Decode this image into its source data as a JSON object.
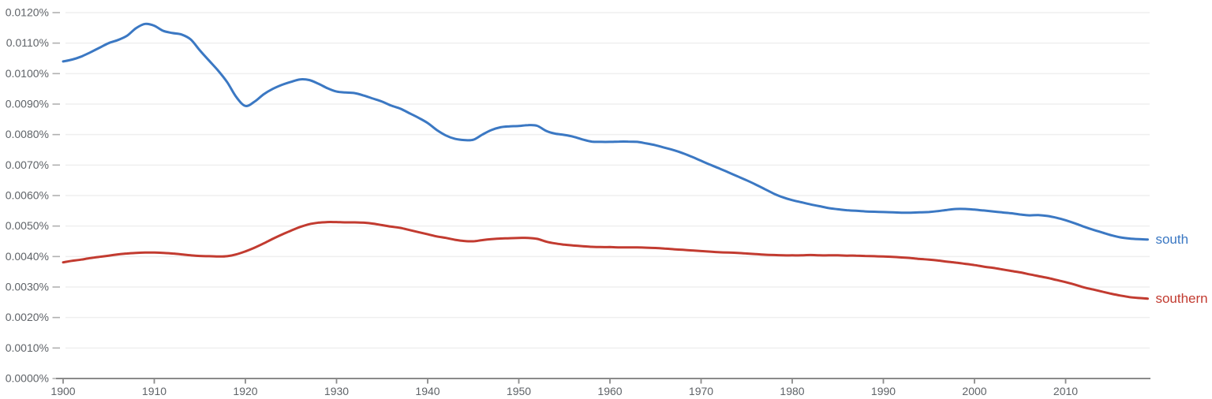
{
  "chart_data": {
    "type": "line",
    "title": "",
    "xlabel": "",
    "ylabel": "",
    "xlim": [
      1900,
      2019
    ],
    "ylim_percent": [
      0.0,
      0.012
    ],
    "grid": true,
    "legend_position": "end-of-line",
    "x_start": 1900,
    "x_step": 1,
    "x_end": 2019,
    "x_tick_labels": [
      "1900",
      "1910",
      "1920",
      "1930",
      "1940",
      "1950",
      "1960",
      "1970",
      "1980",
      "1990",
      "2000",
      "2010"
    ],
    "y_tick_labels": [
      "0.0000%",
      "0.0010%",
      "0.0020%",
      "0.0030%",
      "0.0040%",
      "0.0050%",
      "0.0060%",
      "0.0070%",
      "0.0080%",
      "0.0090%",
      "0.0100%",
      "0.0110%",
      "0.0120%"
    ],
    "series": [
      {
        "name": "south",
        "color": "#3b78c3",
        "values_percent": [
          0.0104,
          0.01046,
          0.01056,
          0.0107,
          0.01085,
          0.011,
          0.0111,
          0.01124,
          0.01149,
          0.01163,
          0.01157,
          0.0114,
          0.01133,
          0.01128,
          0.01112,
          0.01076,
          0.01043,
          0.0101,
          0.00972,
          0.00923,
          0.00894,
          0.00908,
          0.00932,
          0.0095,
          0.00963,
          0.00973,
          0.00981,
          0.00979,
          0.00967,
          0.00952,
          0.00941,
          0.00938,
          0.00936,
          0.00928,
          0.00918,
          0.00908,
          0.00895,
          0.00885,
          0.0087,
          0.00855,
          0.00838,
          0.00815,
          0.00797,
          0.00786,
          0.00782,
          0.00783,
          0.008,
          0.00815,
          0.00824,
          0.00827,
          0.00828,
          0.00831,
          0.00829,
          0.00812,
          0.00803,
          0.00799,
          0.00793,
          0.00784,
          0.00777,
          0.00776,
          0.00776,
          0.00777,
          0.00777,
          0.00776,
          0.00771,
          0.00765,
          0.00757,
          0.00749,
          0.00739,
          0.00727,
          0.00714,
          0.00701,
          0.00689,
          0.00676,
          0.00663,
          0.0065,
          0.00636,
          0.00621,
          0.00606,
          0.00594,
          0.00585,
          0.00578,
          0.00571,
          0.00565,
          0.00559,
          0.00555,
          0.00552,
          0.0055,
          0.00548,
          0.00547,
          0.00546,
          0.00545,
          0.00544,
          0.00544,
          0.00545,
          0.00546,
          0.00549,
          0.00553,
          0.00556,
          0.00556,
          0.00554,
          0.00551,
          0.00548,
          0.00545,
          0.00542,
          0.00538,
          0.00535,
          0.00536,
          0.00533,
          0.00527,
          0.00519,
          0.00509,
          0.00498,
          0.00488,
          0.00479,
          0.0047,
          0.00463,
          0.00459,
          0.00457,
          0.00456
        ]
      },
      {
        "name": "southern",
        "color": "#c23b30",
        "values_percent": [
          0.00381,
          0.00386,
          0.0039,
          0.00395,
          0.00399,
          0.00403,
          0.00407,
          0.0041,
          0.00412,
          0.00413,
          0.00413,
          0.00412,
          0.0041,
          0.00407,
          0.00404,
          0.00402,
          0.00401,
          0.004,
          0.00401,
          0.00407,
          0.00417,
          0.00429,
          0.00443,
          0.00458,
          0.00472,
          0.00485,
          0.00497,
          0.00506,
          0.00511,
          0.00513,
          0.00513,
          0.00512,
          0.00512,
          0.00511,
          0.00508,
          0.00503,
          0.00498,
          0.00494,
          0.00487,
          0.0048,
          0.00473,
          0.00466,
          0.00461,
          0.00455,
          0.00451,
          0.0045,
          0.00454,
          0.00457,
          0.00459,
          0.0046,
          0.00461,
          0.00461,
          0.00458,
          0.00449,
          0.00443,
          0.00439,
          0.00436,
          0.00434,
          0.00432,
          0.00431,
          0.00431,
          0.0043,
          0.0043,
          0.0043,
          0.00429,
          0.00428,
          0.00426,
          0.00424,
          0.00422,
          0.0042,
          0.00418,
          0.00416,
          0.00414,
          0.00413,
          0.00412,
          0.0041,
          0.00408,
          0.00406,
          0.00405,
          0.00404,
          0.00404,
          0.00404,
          0.00405,
          0.00404,
          0.00404,
          0.00404,
          0.00403,
          0.00403,
          0.00402,
          0.00401,
          0.004,
          0.00399,
          0.00397,
          0.00395,
          0.00392,
          0.0039,
          0.00387,
          0.00383,
          0.0038,
          0.00376,
          0.00372,
          0.00367,
          0.00363,
          0.00358,
          0.00353,
          0.00348,
          0.00342,
          0.00336,
          0.0033,
          0.00323,
          0.00316,
          0.00308,
          0.00299,
          0.00292,
          0.00285,
          0.00278,
          0.00272,
          0.00267,
          0.00264,
          0.00262
        ]
      }
    ]
  },
  "colors": {
    "background": "#ffffff",
    "grid": "#efefef",
    "axis": "#8a8a8a",
    "y_tick_dash": "#b0b0b0",
    "tick_label": "#5f6368",
    "south_line": "#3b78c3",
    "southern_line": "#c23b30"
  }
}
